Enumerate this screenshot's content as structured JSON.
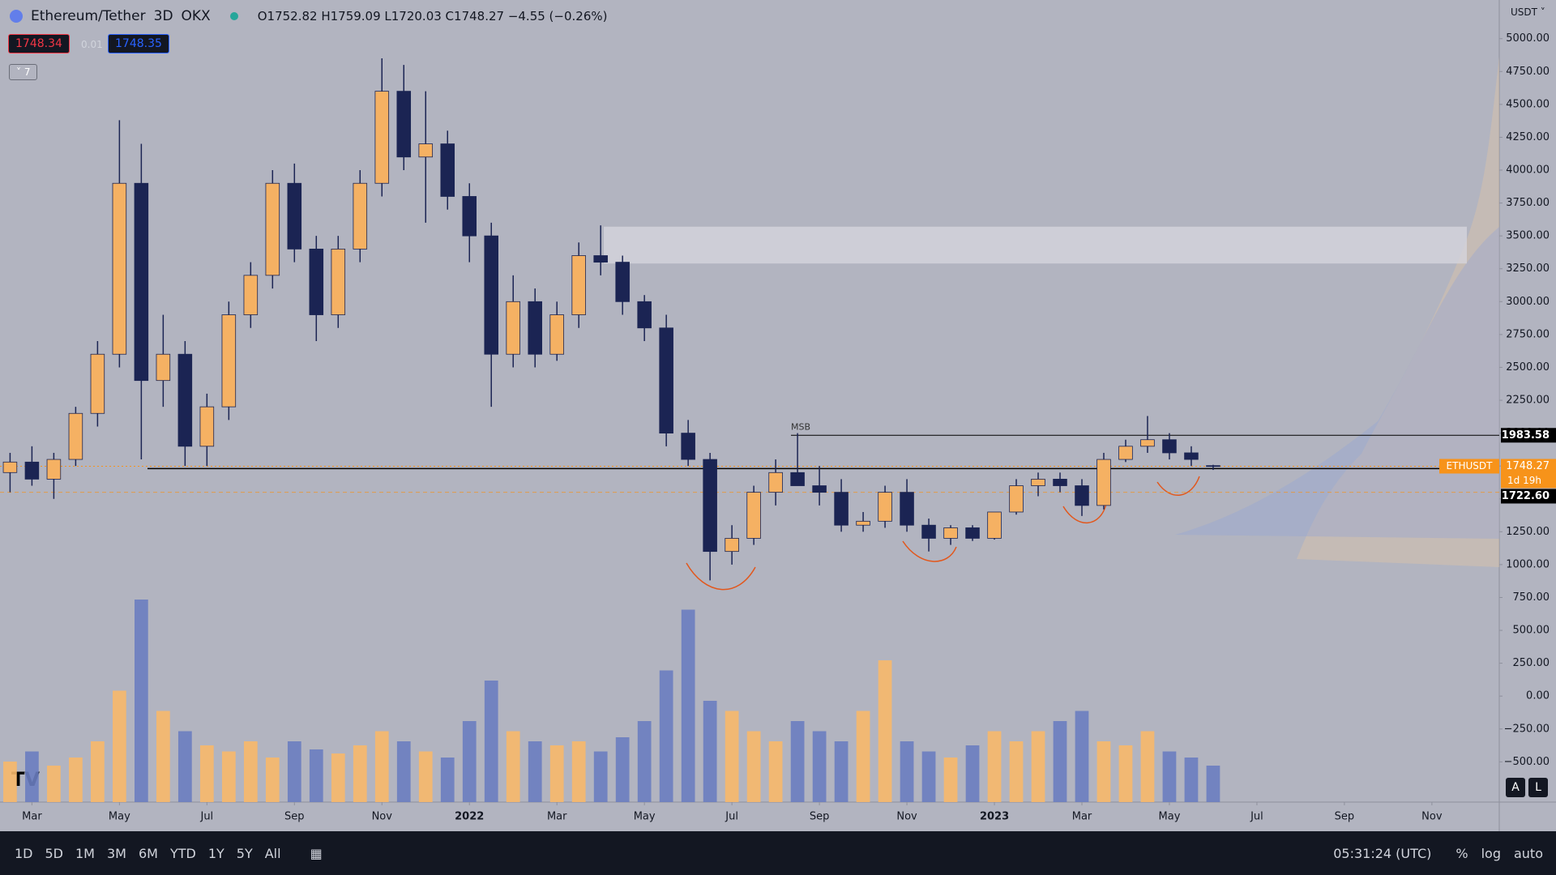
{
  "header": {
    "symbol": "Ethereum/Tether",
    "interval": "3D",
    "exchange": "OKX",
    "ohlc_text": "O1752.82 H1759.09 L1720.03 C1748.27 −4.55 (−0.26%)",
    "bid": "1748.34",
    "spread": "0.01",
    "ask": "1748.35",
    "indicators": "7",
    "currency": "USDT"
  },
  "chart_data": {
    "type": "candlestick",
    "annotation": "MSB",
    "xlim": [
      1.27,
      35.54
    ],
    "ylim": [
      -806,
      5294
    ],
    "volume_lim": [
      0,
      100
    ],
    "xticks": [
      {
        "value": 2,
        "label": "Mar"
      },
      {
        "value": 4,
        "label": "May"
      },
      {
        "value": 6,
        "label": "Jul"
      },
      {
        "value": 8,
        "label": "Sep"
      },
      {
        "value": 10,
        "label": "Nov"
      },
      {
        "value": 12,
        "label": "2022"
      },
      {
        "value": 14,
        "label": "Mar"
      },
      {
        "value": 16,
        "label": "May"
      },
      {
        "value": 18,
        "label": "Jul"
      },
      {
        "value": 20,
        "label": "Sep"
      },
      {
        "value": 22,
        "label": "Nov"
      },
      {
        "value": 24,
        "label": "2023"
      },
      {
        "value": 26,
        "label": "Mar"
      },
      {
        "value": 28,
        "label": "May"
      },
      {
        "value": 30,
        "label": "Jul"
      },
      {
        "value": 32,
        "label": "Sep"
      },
      {
        "value": 34,
        "label": "Nov"
      }
    ],
    "yticks": [
      {
        "value": 5000,
        "label": "5000.00"
      },
      {
        "value": 4750,
        "label": "4750.00"
      },
      {
        "value": 4500,
        "label": "4500.00"
      },
      {
        "value": 4250,
        "label": "4250.00"
      },
      {
        "value": 4000,
        "label": "4000.00"
      },
      {
        "value": 3750,
        "label": "3750.00"
      },
      {
        "value": 3500,
        "label": "3500.00"
      },
      {
        "value": 3250,
        "label": "3250.00"
      },
      {
        "value": 3000,
        "label": "3000.00"
      },
      {
        "value": 2750,
        "label": "2750.00"
      },
      {
        "value": 2500,
        "label": "2500.00"
      },
      {
        "value": 2250,
        "label": "2250.00"
      },
      {
        "value": 2000,
        "label": "2000.00"
      },
      {
        "value": 1750,
        "label": "1750.00"
      },
      {
        "value": 1500,
        "label": "1500.00"
      },
      {
        "value": 1250,
        "label": "1250.00"
      },
      {
        "value": 1000,
        "label": "1000.00"
      },
      {
        "value": 750,
        "label": "750.00"
      },
      {
        "value": 500,
        "label": "500.00"
      },
      {
        "value": 250,
        "label": "250.00"
      },
      {
        "value": 0,
        "label": "0.00"
      },
      {
        "value": -250,
        "label": "−250.00"
      },
      {
        "value": -500,
        "label": "−500.00"
      }
    ],
    "up_color": "#f5b163",
    "down_color": "#1b2453",
    "volume_up_color": "#f7b86a",
    "volume_down_color": "#6a7dc0",
    "candles": {
      "x": [
        1.5,
        2,
        2.5,
        3,
        3.5,
        4,
        4.5,
        5,
        5.5,
        6,
        6.5,
        7,
        7.5,
        8,
        8.5,
        9,
        9.5,
        10,
        10.5,
        11,
        11.5,
        12,
        12.5,
        13,
        13.5,
        14,
        14.5,
        15,
        15.5,
        16,
        16.5,
        17,
        17.5,
        18,
        18.5,
        19,
        19.5,
        20,
        20.5,
        21,
        21.5,
        22,
        22.5,
        23,
        23.5,
        24,
        24.5,
        25,
        25.5,
        26,
        26.5,
        27,
        27.5,
        28,
        28.5,
        29
      ],
      "open": [
        1700,
        1780,
        1650,
        1800,
        2150,
        2600,
        3900,
        2400,
        2600,
        1900,
        2200,
        2900,
        3200,
        3900,
        3400,
        2900,
        3400,
        3900,
        4600,
        4100,
        4200,
        3800,
        3500,
        2600,
        3000,
        2600,
        2900,
        3350,
        3300,
        3000,
        2800,
        2000,
        1800,
        1100,
        1200,
        1550,
        1700,
        1600,
        1550,
        1300,
        1330,
        1550,
        1300,
        1200,
        1280,
        1200,
        1400,
        1600,
        1650,
        1600,
        1450,
        1800,
        1900,
        1950,
        1850,
        1752.82
      ],
      "high": [
        1850,
        1900,
        1850,
        2200,
        2700,
        4380,
        4200,
        2900,
        2700,
        2300,
        3000,
        3300,
        4000,
        4050,
        3500,
        3500,
        4000,
        4850,
        4800,
        4600,
        4300,
        3900,
        3600,
        3200,
        3100,
        3000,
        3450,
        3580,
        3350,
        3050,
        2900,
        2100,
        1850,
        1300,
        1600,
        1800,
        2000,
        1750,
        1650,
        1400,
        1600,
        1650,
        1350,
        1300,
        1300,
        1400,
        1650,
        1700,
        1700,
        1650,
        1850,
        1950,
        2130,
        2000,
        1900,
        1759.09
      ],
      "low": [
        1550,
        1600,
        1500,
        1750,
        2050,
        2500,
        1800,
        2200,
        1750,
        1750,
        2100,
        2800,
        3100,
        3300,
        2700,
        2800,
        3300,
        3800,
        4000,
        3600,
        3700,
        3300,
        2200,
        2500,
        2500,
        2550,
        2800,
        3200,
        2900,
        2700,
        1900,
        1750,
        880,
        1000,
        1150,
        1450,
        1650,
        1450,
        1250,
        1250,
        1280,
        1250,
        1100,
        1150,
        1180,
        1190,
        1380,
        1520,
        1550,
        1370,
        1420,
        1780,
        1850,
        1800,
        1750,
        1720.03
      ],
      "close": [
        1780,
        1650,
        1800,
        2150,
        2600,
        3900,
        2400,
        2600,
        1900,
        2200,
        2900,
        3200,
        3900,
        3400,
        2900,
        3400,
        3900,
        4600,
        4100,
        4200,
        3800,
        3500,
        2600,
        3000,
        2600,
        2900,
        3350,
        3300,
        3000,
        2800,
        2000,
        1800,
        1100,
        1200,
        1550,
        1700,
        1600,
        1550,
        1300,
        1330,
        1550,
        1300,
        1200,
        1280,
        1200,
        1400,
        1600,
        1650,
        1600,
        1450,
        1800,
        1900,
        1950,
        1850,
        1800,
        1748.27
      ],
      "volume": [
        20,
        25,
        18,
        22,
        30,
        55,
        100,
        45,
        35,
        28,
        25,
        30,
        22,
        30,
        26,
        24,
        28,
        35,
        30,
        25,
        22,
        40,
        60,
        35,
        30,
        28,
        30,
        25,
        32,
        40,
        65,
        95,
        50,
        45,
        35,
        30,
        40,
        35,
        30,
        45,
        70,
        30,
        25,
        22,
        28,
        35,
        30,
        35,
        40,
        45,
        30,
        28,
        35,
        25,
        22,
        18
      ]
    },
    "zone": {
      "low": 3290,
      "high": 3570
    },
    "support": 1730,
    "msb_level": {
      "value": 1983.58,
      "label": "1983.58"
    },
    "last_price": {
      "value": 1748.27,
      "label": "1748.27",
      "name": "ETHUSDT",
      "countdown": "1d 19h"
    },
    "low_level": {
      "value": 1722.6,
      "label": "1722.60"
    }
  },
  "toolbar": {
    "ranges": [
      "1D",
      "5D",
      "1M",
      "3M",
      "6M",
      "YTD",
      "1Y",
      "5Y",
      "All"
    ],
    "clock": "05:31:24 (UTC)",
    "percent": "%",
    "log": "log",
    "auto": "auto",
    "scale_a": "A",
    "scale_l": "L"
  }
}
